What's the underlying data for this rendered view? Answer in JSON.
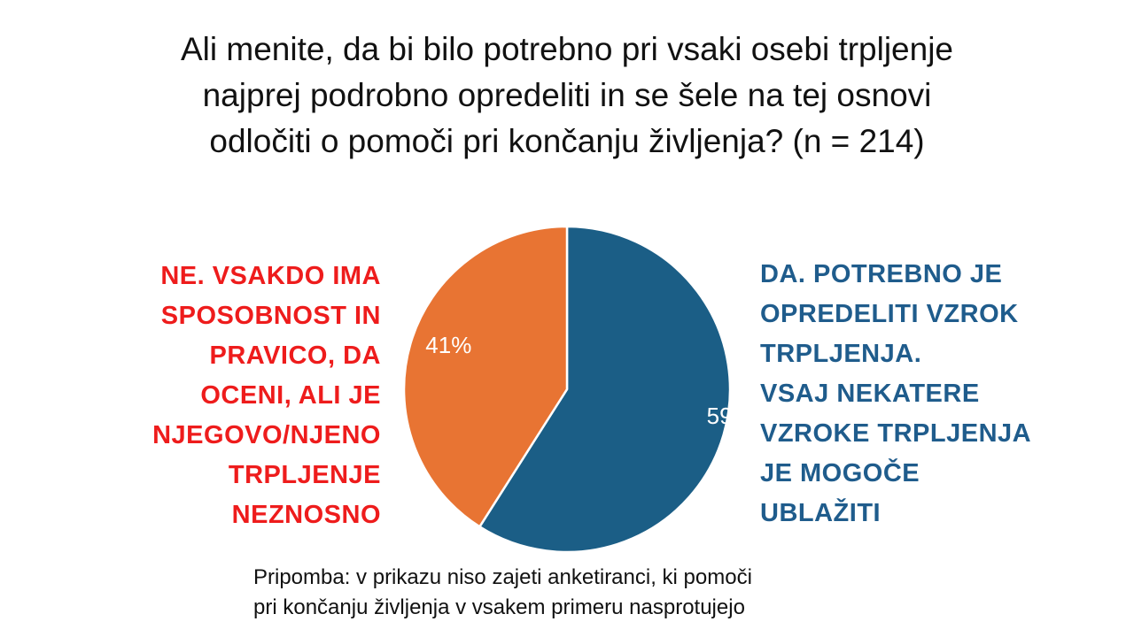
{
  "title_lines": [
    "Ali menite, da bi bilo potrebno pri vsaki osebi trpljenje",
    "najprej podrobno opredeliti in se šele na tej osnovi",
    "odločiti o pomoči pri končanju življenja? (n = 214)"
  ],
  "left_label_lines": [
    "NE. VSAKDO IMA",
    "SPOSOBNOST IN",
    "PRAVICO, DA",
    "OCENI, ALI JE",
    "NJEGOVO/NJENO",
    "TRPLJENJE",
    "NEZNOSNO"
  ],
  "right_label_lines": [
    "DA. POTREBNO JE",
    "OPREDELITI VZROK",
    "TRPLJENJA.",
    "VSAJ NEKATERE",
    "VZROKE TRPLJENJA",
    "JE MOGOČE",
    "UBLAŽITI"
  ],
  "note_lines": [
    "Pripomba: v prikazu niso zajeti anketiranci, ki pomoči",
    "pri končanju življenja v vsakem primeru nasprotujejo"
  ],
  "colors": {
    "yes": "#1b5e86",
    "no": "#e87433",
    "no_text": "#ee1c1c",
    "yes_text": "#1f5c8c"
  },
  "chart_data": {
    "type": "pie",
    "title": "Ali menite, da bi bilo potrebno pri vsaki osebi trpljenje najprej podrobno opredeliti in se šele na tej osnovi odločiti o pomoči pri končanju življenja? (n = 214)",
    "slices": [
      {
        "label": "DA. POTREBNO JE OPREDELITI VZROK TRPLJENJA. VSAJ NEKATERE VZROKE TRPLJENJA JE MOGOČE UBLAŽITI",
        "value": 59,
        "display": "59%",
        "color": "#1b5e86"
      },
      {
        "label": "NE. VSAKDO IMA SPOSOBNOST IN PRAVICO, DA OCENI, ALI JE NJEGOVO/NJENO TRPLJENJE NEZNOSNO",
        "value": 41,
        "display": "41%",
        "color": "#e87433"
      }
    ],
    "start_angle_deg": 0,
    "direction": "clockwise",
    "legend": "none"
  }
}
